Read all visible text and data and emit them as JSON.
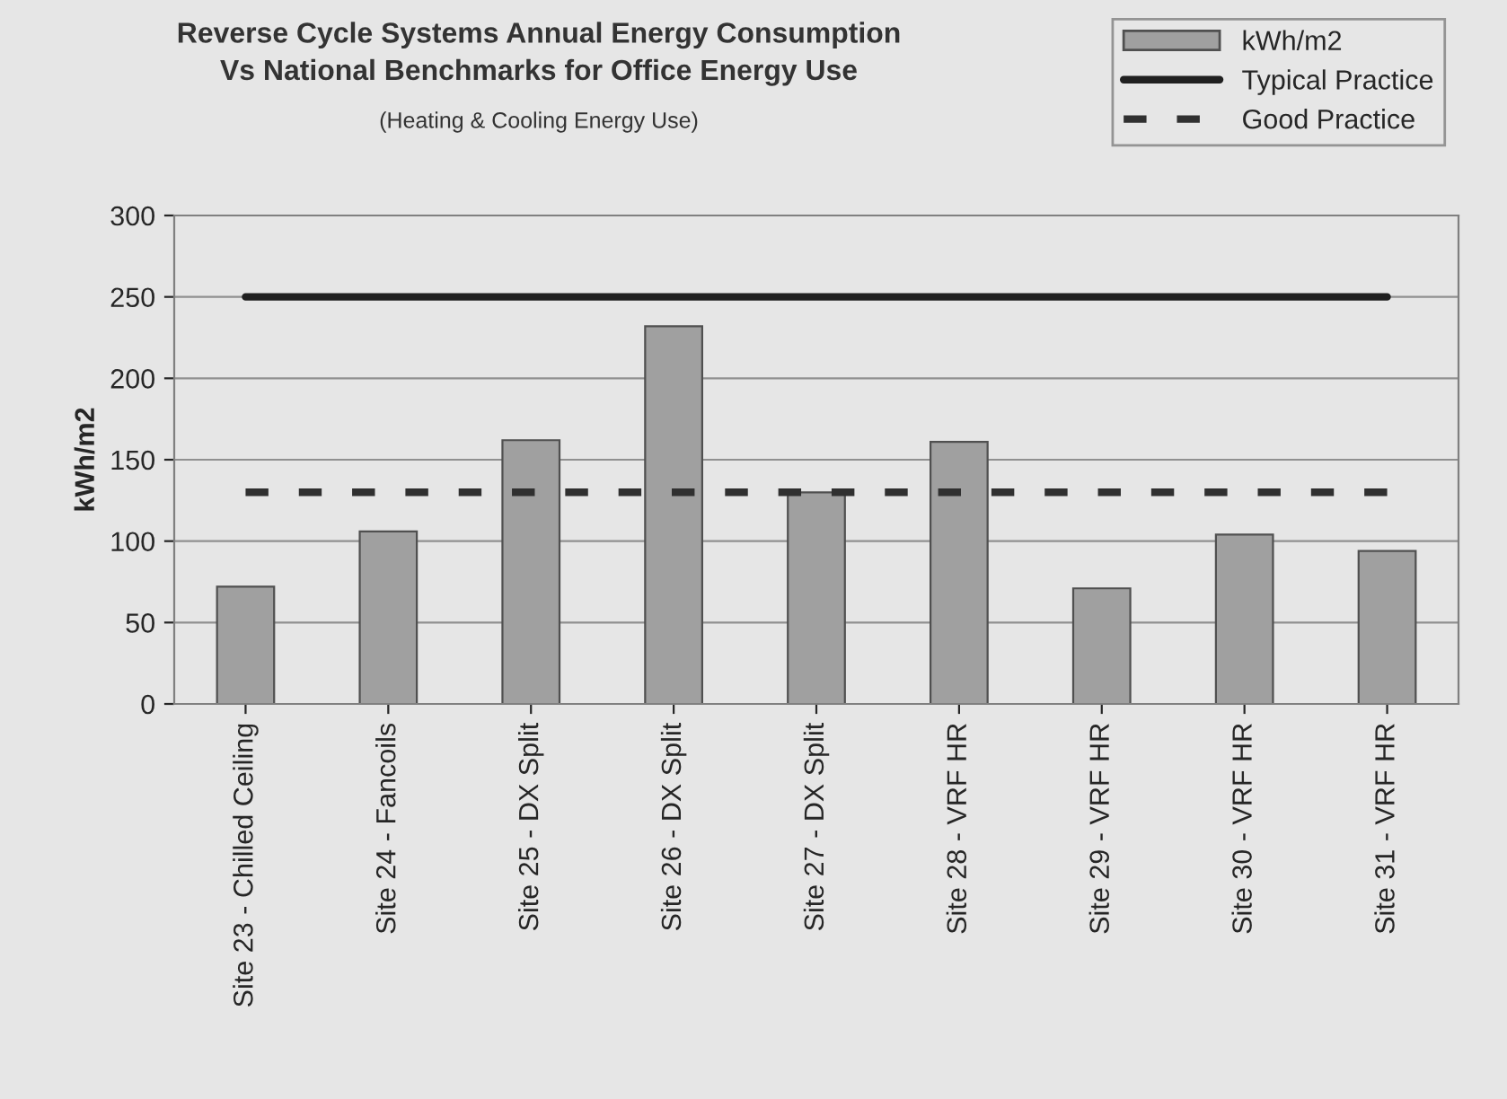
{
  "chart_data": {
    "type": "bar",
    "title": "Reverse Cycle Systems Annual Energy Consumption\nVs National Benchmarks for Office Energy Use",
    "subtitle": "(Heating & Cooling Energy Use)",
    "ylabel": "kWh/m2",
    "categories": [
      "Site 23 - Chilled Ceiling",
      "Site 24 - Fancoils",
      "Site 25 - DX Split",
      "Site 26 - DX Split",
      "Site 27 - DX Split",
      "Site 28 - VRF HR",
      "Site 29 - VRF HR",
      "Site 30 - VRF HR",
      "Site 31 - VRF HR"
    ],
    "series": [
      {
        "name": "kWh/m2",
        "color": "#a0a0a0",
        "values": [
          72,
          106,
          162,
          232,
          130,
          161,
          71,
          104,
          94
        ]
      },
      {
        "name": "Typical Practice",
        "type": "line",
        "color": "#202020",
        "line_style": "solid",
        "values": [
          250,
          250,
          250,
          250,
          250,
          250,
          250,
          250,
          250
        ]
      },
      {
        "name": "Good Practice",
        "type": "line",
        "color": "#303030",
        "line_style": "dashed",
        "values": [
          130,
          130,
          130,
          130,
          130,
          130,
          130,
          130,
          130
        ]
      }
    ],
    "ylim": [
      0,
      300
    ],
    "yticks": [
      0,
      50,
      100,
      150,
      200,
      250,
      300
    ],
    "grid": "y",
    "legend": "top right"
  }
}
